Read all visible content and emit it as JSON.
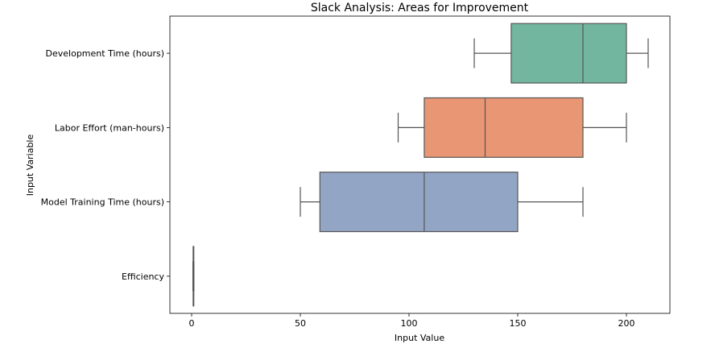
{
  "chart_data": {
    "type": "boxplot",
    "orientation": "horizontal",
    "title": "Slack Analysis: Areas for Improvement",
    "xlabel": "Input Value",
    "ylabel": "Input Variable",
    "xlim": [
      -10,
      220
    ],
    "xticks": [
      0,
      50,
      100,
      150,
      200
    ],
    "grid": false,
    "categories": [
      "Development Time (hours)",
      "Labor Effort (man-hours)",
      "Model Training Time (hours)",
      "Efficiency"
    ],
    "boxes": [
      {
        "category": "Development Time (hours)",
        "whisker_low": 130,
        "q1": 147,
        "median": 180,
        "q3": 200,
        "whisker_high": 210,
        "color": "#72b6a0"
      },
      {
        "category": "Labor Effort (man-hours)",
        "whisker_low": 95,
        "q1": 107,
        "median": 135,
        "q3": 180,
        "whisker_high": 200,
        "color": "#e99675"
      },
      {
        "category": "Model Training Time (hours)",
        "whisker_low": 50,
        "q1": 59,
        "median": 107,
        "q3": 150,
        "whisker_high": 180,
        "color": "#93a5c5"
      },
      {
        "category": "Efficiency",
        "whisker_low": 0.6,
        "q1": 0.7,
        "median": 0.8,
        "q3": 0.9,
        "whisker_high": 1.0,
        "color": "#d7aed1"
      }
    ],
    "line_color": "#555555"
  }
}
